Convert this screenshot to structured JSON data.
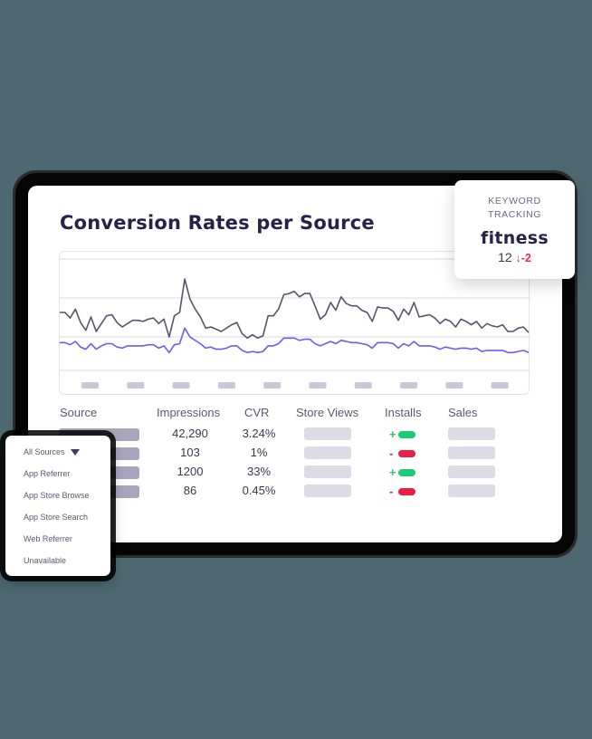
{
  "header": {
    "title": "Conversion Rates per Source"
  },
  "keyword_tracking": {
    "label_line1": "KEYWORD",
    "label_line2": "TRACKING",
    "keyword": "fitness",
    "rank": "12",
    "change_icon": "arrow-down-icon",
    "change_arrow": "↓",
    "change": "-2",
    "change_color": "#ee2a47"
  },
  "table": {
    "headers": {
      "source": "Source",
      "impressions": "Impressions",
      "cvr": "CVR",
      "store_views": "Store Views",
      "installs": "Installs",
      "sales": "Sales"
    },
    "rows": [
      {
        "impressions": "42,290",
        "cvr": "3.24%",
        "installs_sign": "+",
        "installs_trend": "up"
      },
      {
        "impressions": "103",
        "cvr": "1%",
        "installs_sign": "-",
        "installs_trend": "down"
      },
      {
        "impressions": "1200",
        "cvr": "33%",
        "installs_sign": "+",
        "installs_trend": "up"
      },
      {
        "impressions": "86",
        "cvr": "0.45%",
        "installs_sign": "-",
        "installs_trend": "down"
      }
    ],
    "colors": {
      "up": "#1fc97a",
      "down": "#ee1c43"
    }
  },
  "dropdown": {
    "selected": "All Sources",
    "options": [
      "App Referrer",
      "App Store Browse",
      "App Store Search",
      "Web Referrer",
      "Unavailable"
    ]
  },
  "chart_data": {
    "type": "line",
    "title": "Conversion Rates per Source",
    "xlabel": "",
    "ylabel": "",
    "grid": true,
    "x_tick_labels_placeholder_count": 10,
    "series": [
      {
        "name": "series-dark",
        "color": "#57556b",
        "values": [
          52,
          52,
          47,
          55,
          43,
          36,
          48,
          35,
          42,
          49,
          50,
          43,
          39,
          42,
          45,
          45,
          44,
          46,
          47,
          42,
          46,
          30,
          49,
          52,
          82,
          64,
          55,
          48,
          38,
          39,
          37,
          35,
          38,
          41,
          43,
          33,
          29,
          32,
          29,
          31,
          49,
          49,
          55,
          68,
          69,
          71,
          66,
          69,
          69,
          58,
          46,
          50,
          61,
          54,
          66,
          60,
          58,
          58,
          54,
          52,
          44,
          57,
          56,
          56,
          53,
          45,
          55,
          50,
          61,
          48,
          49,
          50,
          47,
          42,
          46,
          44,
          39,
          46,
          44,
          41,
          44,
          38,
          42,
          40,
          39,
          41,
          35,
          35,
          38,
          39,
          34
        ]
      },
      {
        "name": "series-purple",
        "color": "#6b5cf7",
        "values": [
          25,
          25,
          23,
          26,
          21,
          19,
          24,
          19,
          22,
          24,
          24,
          21,
          20,
          22,
          22,
          22,
          22,
          23,
          23,
          20,
          22,
          16,
          23,
          24,
          38,
          30,
          27,
          24,
          20,
          21,
          19,
          19,
          20,
          22,
          22,
          18,
          16,
          17,
          16,
          17,
          22,
          22,
          24,
          29,
          29,
          29,
          27,
          28,
          28,
          24,
          22,
          24,
          26,
          24,
          27,
          26,
          25,
          25,
          24,
          23,
          20,
          25,
          25,
          25,
          24,
          20,
          24,
          22,
          26,
          22,
          22,
          22,
          21,
          19,
          21,
          20,
          19,
          20,
          20,
          19,
          20,
          17,
          18,
          18,
          18,
          18,
          16,
          16,
          17,
          18,
          16
        ]
      }
    ],
    "ylim": [
      0,
      100
    ]
  }
}
